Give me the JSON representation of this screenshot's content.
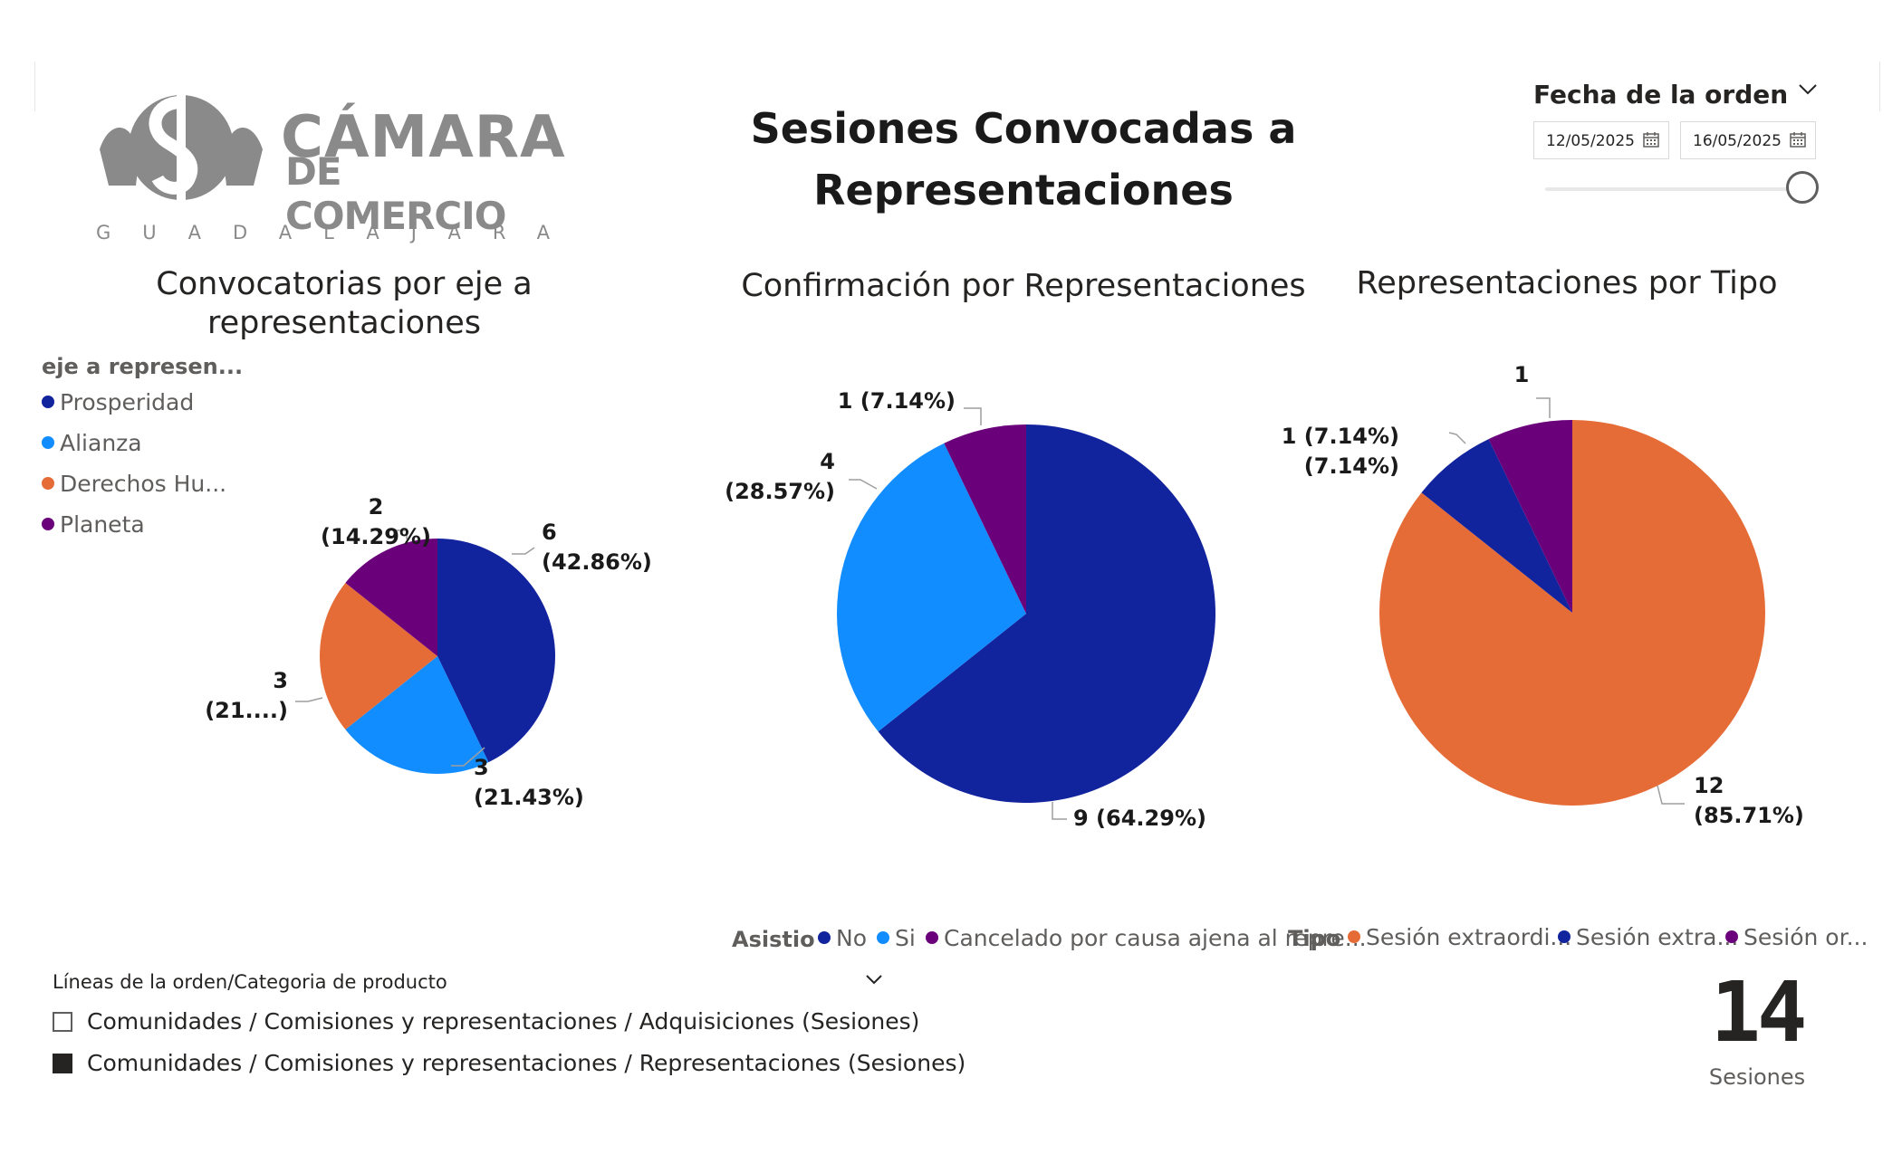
{
  "logo": {
    "line1": "CÁMARA",
    "line2": "DE COMERCIO",
    "line3": "GUADALAJARA"
  },
  "title": "Sesiones Convocadas a Representaciones",
  "date_filter": {
    "title": "Fecha de la orden",
    "start": "12/05/2025",
    "end": "16/05/2025"
  },
  "legend1": {
    "title": "eje a represen...",
    "items": [
      "Prosperidad",
      "Alianza",
      "Derechos Hu...",
      "Planeta"
    ]
  },
  "legend2": {
    "title": "Asistio",
    "items": [
      "No",
      "Si",
      "Cancelado por causa ajena al repre..."
    ]
  },
  "legend3": {
    "title": "Tipo",
    "items": [
      "Sesión extraordi...",
      "Sesión extra...",
      "Sesión or..."
    ]
  },
  "colors": {
    "dark_blue": "#12239E",
    "light_blue": "#118DFF",
    "orange": "#E66C37",
    "purple": "#6B007B"
  },
  "chart_data": [
    {
      "type": "pie",
      "title": "Convocatorias por eje a representaciones",
      "legend_title": "eje a represen...",
      "categories": [
        "Prosperidad",
        "Alianza",
        "Derechos Hu...",
        "Planeta"
      ],
      "values": [
        6,
        3,
        3,
        2
      ],
      "labels": [
        [
          "6",
          "(42.86%)"
        ],
        [
          "3",
          "(21.43%)"
        ],
        [
          "3",
          "(21....)"
        ],
        [
          "2",
          "(14.29%)"
        ]
      ],
      "colors": [
        "#12239E",
        "#118DFF",
        "#E66C37",
        "#6B007B"
      ]
    },
    {
      "type": "pie",
      "title": "Confirmación por Representaciones",
      "legend_title": "Asistio",
      "categories": [
        "No",
        "Si",
        "Cancelado por causa ajena al repre..."
      ],
      "values": [
        9,
        4,
        1
      ],
      "labels": [
        [
          "9 (64.29%)"
        ],
        [
          "4",
          "(28.57%)"
        ],
        [
          "1 (7.14%)"
        ]
      ],
      "colors": [
        "#12239E",
        "#118DFF",
        "#6B007B"
      ]
    },
    {
      "type": "pie",
      "title": "Representaciones por Tipo",
      "legend_title": "Tipo",
      "categories": [
        "Sesión extraordi...",
        "Sesión extra...",
        "Sesión or..."
      ],
      "values": [
        12,
        1,
        1
      ],
      "labels": [
        [
          "12",
          "(85.71%)"
        ],
        [
          "1 (7.14%)",
          "(7.14%)"
        ],
        [
          "1"
        ]
      ],
      "colors": [
        "#E66C37",
        "#12239E",
        "#6B007B"
      ]
    }
  ],
  "category_filter": {
    "title": "Líneas de la orden/Categoria de producto",
    "items": [
      {
        "label": "Comunidades / Comisiones y representaciones / Adquisiciones (Sesiones)",
        "checked": false
      },
      {
        "label": "Comunidades / Comisiones y representaciones / Representaciones (Sesiones)",
        "checked": true
      }
    ]
  },
  "kpi": {
    "value": "14",
    "label": "Sesiones"
  }
}
